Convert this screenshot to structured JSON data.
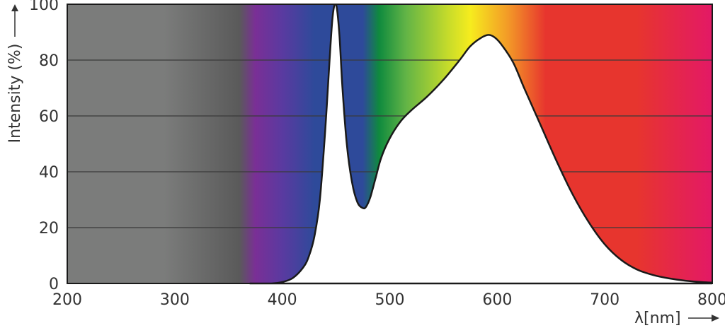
{
  "chart_data": {
    "type": "area",
    "xlabel": "λ[nm]",
    "ylabel": "Intensity (%)",
    "xlim": [
      200,
      800
    ],
    "ylim": [
      0,
      100
    ],
    "x_ticks": [
      "200",
      "300",
      "400",
      "500",
      "600",
      "700",
      "800"
    ],
    "y_ticks": [
      "0",
      "20",
      "40",
      "60",
      "80",
      "100"
    ],
    "grid": true,
    "background": "visible-spectrum gradient (UV grey, violet to red)",
    "series": [
      {
        "x": [
          370,
          380,
          390,
          400,
          410,
          420,
          425,
          430,
          435,
          440,
          444,
          447,
          450,
          453,
          456,
          460,
          465,
          470,
          475,
          478,
          482,
          487,
          492,
          500,
          510,
          520,
          535,
          550,
          565,
          575,
          585,
          592,
          598,
          605,
          615,
          625,
          640,
          655,
          670,
          685,
          700,
          715,
          730,
          745,
          760,
          775,
          790,
          800
        ],
        "y": [
          0,
          0,
          0,
          0.5,
          2,
          6,
          10,
          17,
          30,
          55,
          80,
          96,
          100,
          90,
          70,
          50,
          36,
          29,
          27,
          27.5,
          31,
          38,
          45,
          52,
          58,
          62,
          67,
          73,
          80,
          85,
          88,
          89,
          88,
          85,
          79,
          70,
          57,
          44,
          32,
          22,
          14,
          8.5,
          5,
          3,
          1.8,
          1,
          0.5,
          0.3
        ]
      }
    ]
  },
  "colors": {
    "curve_stroke": "#1a1a1a",
    "curve_fill": "#ffffff",
    "gridline": "#3a3a3a",
    "uv_grey": "#7b7c7b",
    "violet": "#7a2f96",
    "blue": "#2e4a9a",
    "green": "#0f8a3e",
    "yellow": "#f6ec1e",
    "orange": "#f39a27",
    "red": "#e7352e",
    "magenta": "#e31966"
  }
}
